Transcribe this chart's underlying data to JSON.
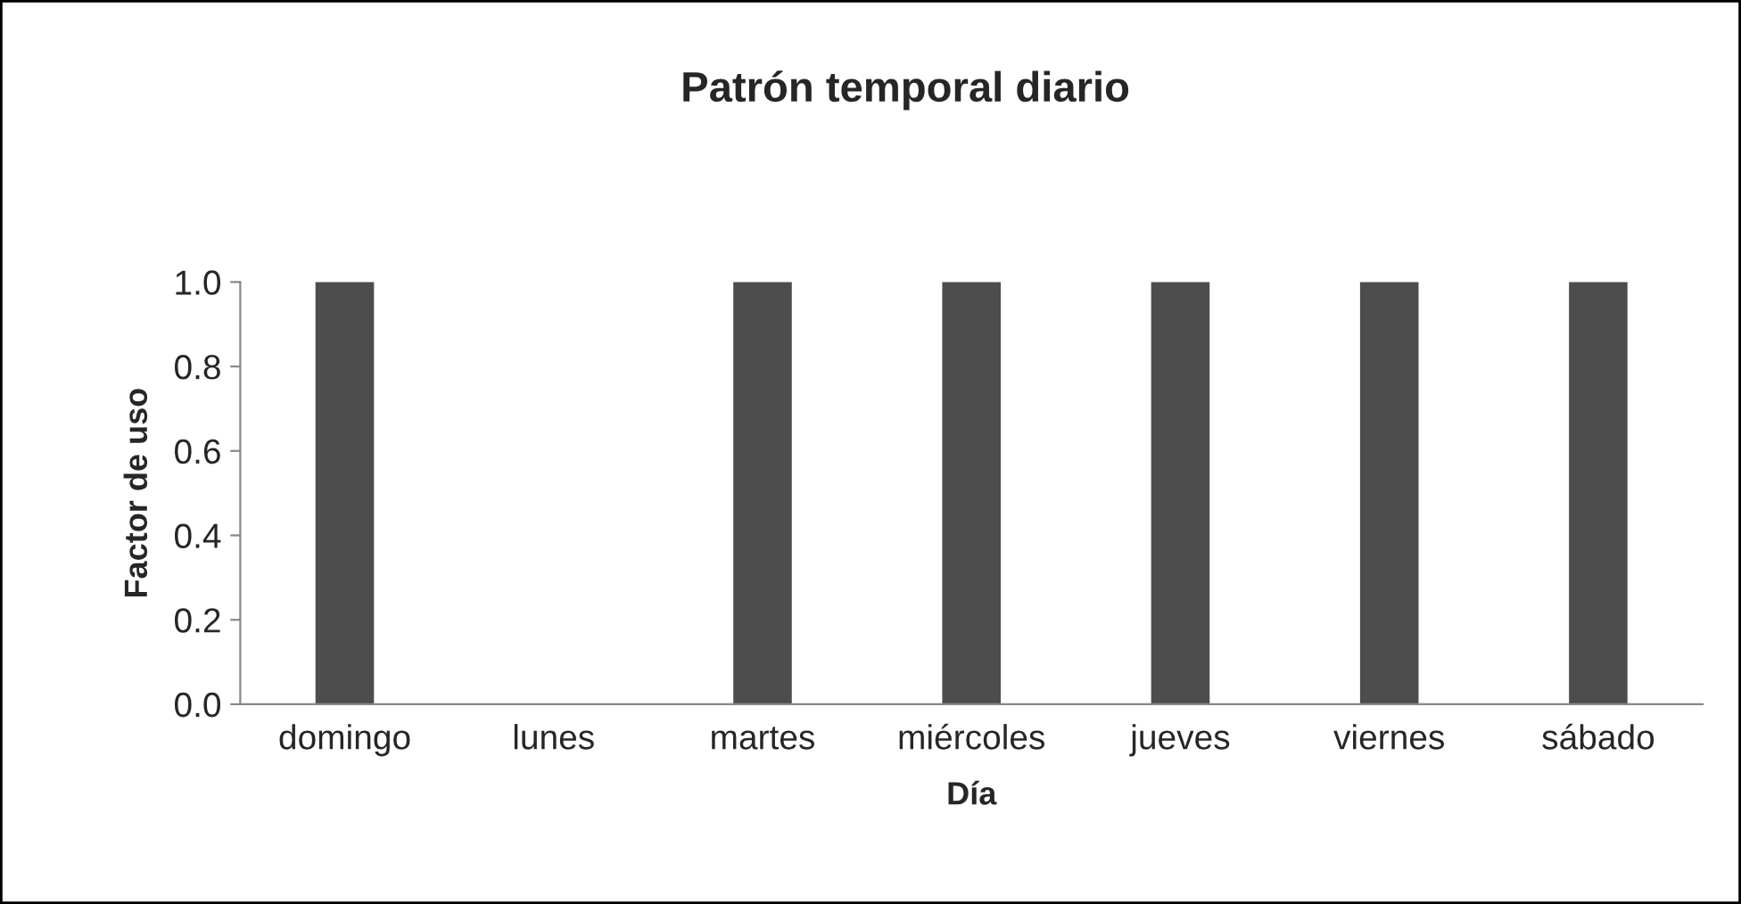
{
  "chart_data": {
    "type": "bar",
    "title": "Patrón temporal diario",
    "xlabel": "Día",
    "ylabel": "Factor de uso",
    "categories": [
      "domingo",
      "lunes",
      "martes",
      "miércoles",
      "jueves",
      "viernes",
      "sábado"
    ],
    "values": [
      1.0,
      0.0,
      1.0,
      1.0,
      1.0,
      1.0,
      1.0
    ],
    "color": "#4d4d4d",
    "ylim": [
      0,
      1.0
    ],
    "yticks": [
      {
        "value": 0,
        "label": "0.0"
      },
      {
        "value": 0.2,
        "label": "0.2"
      },
      {
        "value": 0.4,
        "label": "0.4"
      },
      {
        "value": 0.6,
        "label": "0.6"
      },
      {
        "value": 0.8,
        "label": "0.8"
      },
      {
        "value": 1.0,
        "label": "1.0"
      }
    ],
    "grid": false,
    "legend": false
  }
}
